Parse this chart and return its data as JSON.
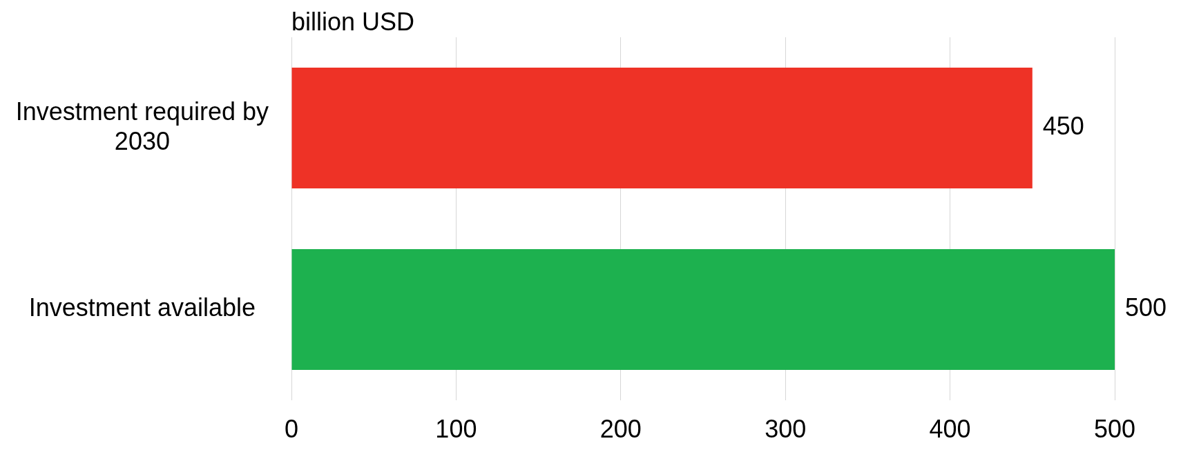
{
  "chart_data": {
    "type": "bar",
    "orientation": "horizontal",
    "xlabel": "billion USD",
    "categories": [
      "Investment required by 2030",
      "Investment available"
    ],
    "values": [
      450,
      500
    ],
    "colors": [
      "#ee3226",
      "#1db14f"
    ],
    "xlim": [
      0,
      500
    ],
    "xticks": [
      0,
      100,
      200,
      300,
      400,
      500
    ],
    "grid": "x",
    "data_labels": true
  }
}
